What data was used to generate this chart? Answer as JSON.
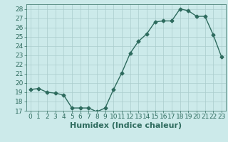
{
  "x": [
    0,
    1,
    2,
    3,
    4,
    5,
    6,
    7,
    8,
    9,
    10,
    11,
    12,
    13,
    14,
    15,
    16,
    17,
    18,
    19,
    20,
    21,
    22,
    23
  ],
  "y": [
    19.3,
    19.4,
    19.0,
    18.9,
    18.7,
    17.3,
    17.3,
    17.3,
    16.9,
    17.3,
    19.3,
    21.1,
    23.2,
    24.5,
    25.3,
    26.6,
    26.7,
    26.7,
    28.0,
    27.8,
    27.2,
    27.2,
    25.2,
    22.8
  ],
  "line_color": "#2e6b5e",
  "marker": "D",
  "marker_size": 2.5,
  "bg_color": "#cceaea",
  "grid_color": "#aacccc",
  "xlabel": "Humidex (Indice chaleur)",
  "ylim": [
    17,
    28.5
  ],
  "xlim": [
    -0.5,
    23.5
  ],
  "yticks": [
    17,
    18,
    19,
    20,
    21,
    22,
    23,
    24,
    25,
    26,
    27,
    28
  ],
  "xticks": [
    0,
    1,
    2,
    3,
    4,
    5,
    6,
    7,
    8,
    9,
    10,
    11,
    12,
    13,
    14,
    15,
    16,
    17,
    18,
    19,
    20,
    21,
    22,
    23
  ],
  "xlabel_fontsize": 8,
  "tick_fontsize": 6.5
}
